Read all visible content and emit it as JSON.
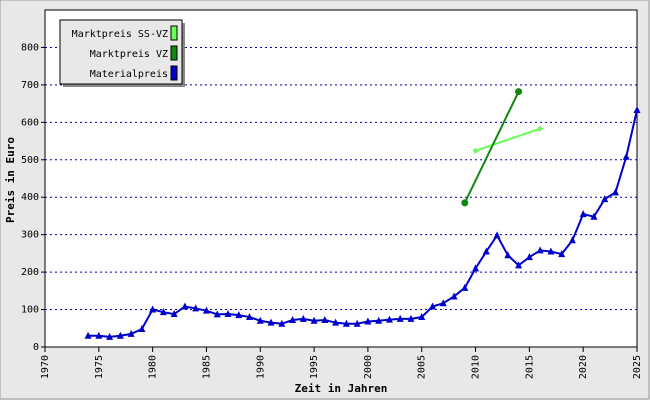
{
  "chart_data": {
    "type": "line",
    "xlabel": "Zeit in Jahren",
    "ylabel": "Preis in Euro",
    "xlim": [
      1970,
      2025
    ],
    "ylim": [
      0,
      900
    ],
    "xticks": [
      1970,
      1975,
      1980,
      1985,
      1990,
      1995,
      2000,
      2005,
      2010,
      2015,
      2020,
      2025
    ],
    "yticks": [
      0,
      100,
      200,
      300,
      400,
      500,
      600,
      700,
      800
    ],
    "grid": true,
    "legend": "upper left",
    "series": [
      {
        "name": "Marktpreis SS-VZ",
        "color": "#66ff55",
        "marker": "diamond",
        "x": [
          2010,
          2016
        ],
        "values": [
          524,
          583
        ]
      },
      {
        "name": "Marktpreis VZ",
        "color": "#118811",
        "marker": "circle",
        "x": [
          2009,
          2014
        ],
        "values": [
          385,
          682
        ]
      },
      {
        "name": "Materialpreis",
        "color": "#0000cc",
        "marker": "triangle",
        "x": [
          1974,
          1975,
          1976,
          1977,
          1978,
          1979,
          1980,
          1981,
          1982,
          1983,
          1984,
          1985,
          1986,
          1987,
          1988,
          1989,
          1990,
          1991,
          1992,
          1993,
          1994,
          1995,
          1996,
          1997,
          1998,
          1999,
          2000,
          2001,
          2002,
          2003,
          2004,
          2005,
          2006,
          2007,
          2008,
          2009,
          2010,
          2011,
          2012,
          2013,
          2014,
          2015,
          2016,
          2017,
          2018,
          2019,
          2020,
          2021,
          2022,
          2023,
          2024,
          2025
        ],
        "values": [
          30,
          30,
          27,
          30,
          35,
          48,
          100,
          93,
          88,
          108,
          103,
          97,
          87,
          88,
          85,
          80,
          70,
          65,
          62,
          72,
          75,
          70,
          72,
          65,
          62,
          62,
          68,
          70,
          73,
          75,
          75,
          80,
          108,
          117,
          135,
          158,
          210,
          255,
          298,
          245,
          218,
          240,
          258,
          255,
          248,
          285,
          355,
          348,
          395,
          413,
          508,
          633
        ]
      }
    ]
  }
}
